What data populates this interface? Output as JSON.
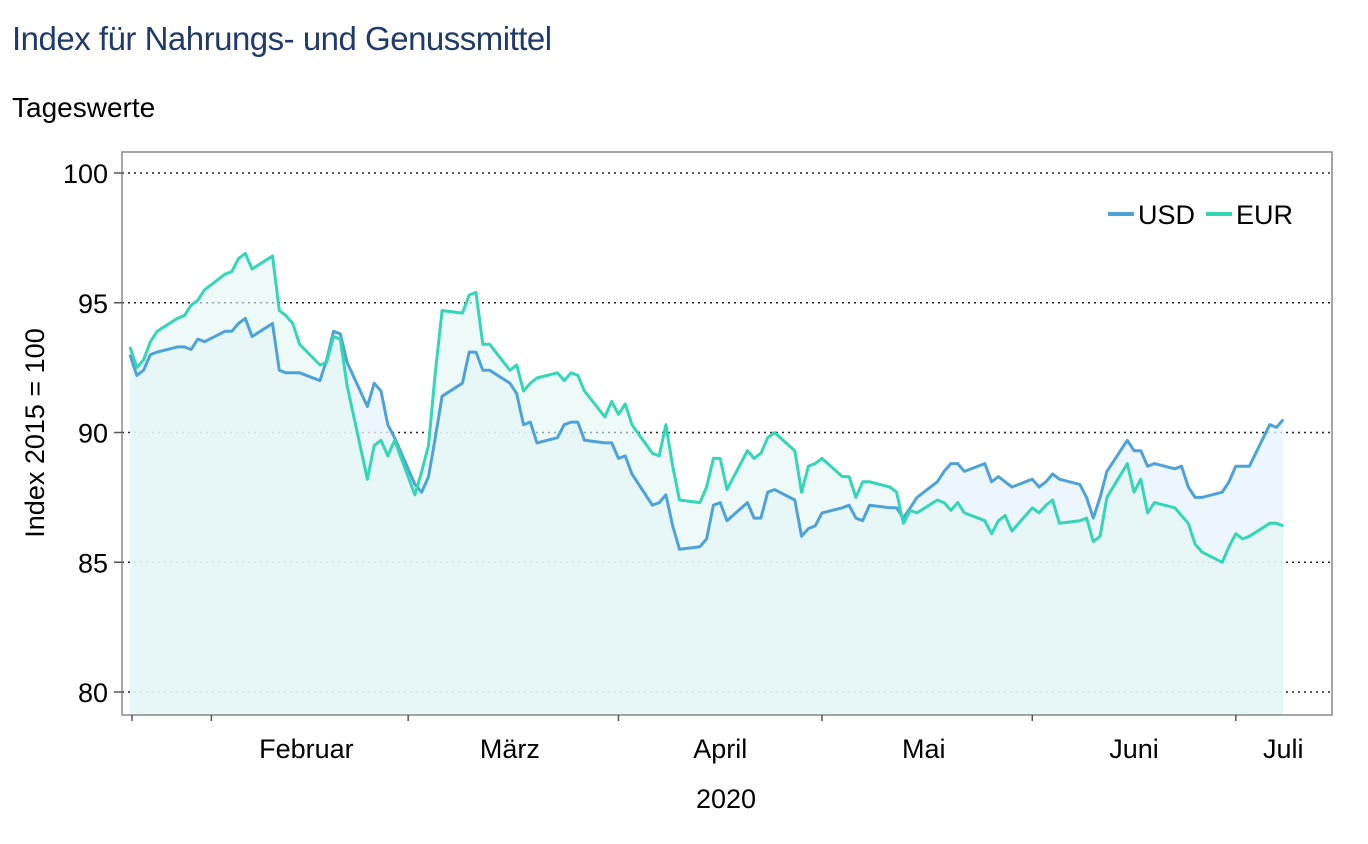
{
  "header": {
    "title": "Index für Nahrungs- und Genussmittel",
    "subtitle": "Tageswerte"
  },
  "chart_data": {
    "type": "area",
    "ylabel": "Index 2015 = 100",
    "xlabel": "2020",
    "ylim": [
      80,
      100
    ],
    "yticks": [
      80,
      85,
      90,
      95,
      100
    ],
    "x_start": "2020-01-20",
    "x_end": "2020-07-14",
    "month_ticks": [
      "2020-02-01",
      "2020-03-01",
      "2020-04-01",
      "2020-05-01",
      "2020-06-01",
      "2020-07-01"
    ],
    "month_labels": [
      {
        "label": "Februar",
        "date": "2020-02-15"
      },
      {
        "label": "März",
        "date": "2020-03-16"
      },
      {
        "label": "April",
        "date": "2020-04-16"
      },
      {
        "label": "Mai",
        "date": "2020-05-16"
      },
      {
        "label": "Juni",
        "date": "2020-06-16"
      },
      {
        "label": "Juli",
        "date": "2020-07-08"
      }
    ],
    "grid": "horizontal-dotted",
    "legend": "top-right",
    "series": [
      {
        "name": "USD",
        "color": "#4da3d9",
        "points": [
          [
            "2020-01-20",
            93.0
          ],
          [
            "2020-01-21",
            92.2
          ],
          [
            "2020-01-22",
            92.4
          ],
          [
            "2020-01-23",
            93.0
          ],
          [
            "2020-01-24",
            93.1
          ],
          [
            "2020-01-27",
            93.3
          ],
          [
            "2020-01-28",
            93.3
          ],
          [
            "2020-01-29",
            93.2
          ],
          [
            "2020-01-30",
            93.6
          ],
          [
            "2020-01-31",
            93.5
          ],
          [
            "2020-02-03",
            93.9
          ],
          [
            "2020-02-04",
            93.9
          ],
          [
            "2020-02-05",
            94.2
          ],
          [
            "2020-02-06",
            94.4
          ],
          [
            "2020-02-07",
            93.7
          ],
          [
            "2020-02-10",
            94.2
          ],
          [
            "2020-02-11",
            92.4
          ],
          [
            "2020-02-12",
            92.3
          ],
          [
            "2020-02-13",
            92.3
          ],
          [
            "2020-02-14",
            92.3
          ],
          [
            "2020-02-17",
            92.0
          ],
          [
            "2020-02-18",
            92.8
          ],
          [
            "2020-02-19",
            93.9
          ],
          [
            "2020-02-20",
            93.8
          ],
          [
            "2020-02-21",
            92.7
          ],
          [
            "2020-02-24",
            91.0
          ],
          [
            "2020-02-25",
            91.9
          ],
          [
            "2020-02-26",
            91.6
          ],
          [
            "2020-02-27",
            90.3
          ],
          [
            "2020-02-28",
            89.8
          ],
          [
            "2020-03-02",
            88.0
          ],
          [
            "2020-03-03",
            87.7
          ],
          [
            "2020-03-04",
            88.3
          ],
          [
            "2020-03-05",
            89.8
          ],
          [
            "2020-03-06",
            91.4
          ],
          [
            "2020-03-09",
            91.9
          ],
          [
            "2020-03-10",
            93.1
          ],
          [
            "2020-03-11",
            93.1
          ],
          [
            "2020-03-12",
            92.4
          ],
          [
            "2020-03-13",
            92.4
          ],
          [
            "2020-03-16",
            91.9
          ],
          [
            "2020-03-17",
            91.5
          ],
          [
            "2020-03-18",
            90.3
          ],
          [
            "2020-03-19",
            90.4
          ],
          [
            "2020-03-20",
            89.6
          ],
          [
            "2020-03-23",
            89.8
          ],
          [
            "2020-03-24",
            90.3
          ],
          [
            "2020-03-25",
            90.4
          ],
          [
            "2020-03-26",
            90.4
          ],
          [
            "2020-03-27",
            89.7
          ],
          [
            "2020-03-30",
            89.6
          ],
          [
            "2020-03-31",
            89.6
          ],
          [
            "2020-04-01",
            89.0
          ],
          [
            "2020-04-02",
            89.1
          ],
          [
            "2020-04-03",
            88.4
          ],
          [
            "2020-04-06",
            87.2
          ],
          [
            "2020-04-07",
            87.3
          ],
          [
            "2020-04-08",
            87.6
          ],
          [
            "2020-04-09",
            86.4
          ],
          [
            "2020-04-10",
            85.5
          ],
          [
            "2020-04-13",
            85.6
          ],
          [
            "2020-04-14",
            85.9
          ],
          [
            "2020-04-15",
            87.2
          ],
          [
            "2020-04-16",
            87.3
          ],
          [
            "2020-04-17",
            86.6
          ],
          [
            "2020-04-20",
            87.3
          ],
          [
            "2020-04-21",
            86.7
          ],
          [
            "2020-04-22",
            86.7
          ],
          [
            "2020-04-23",
            87.7
          ],
          [
            "2020-04-24",
            87.8
          ],
          [
            "2020-04-27",
            87.4
          ],
          [
            "2020-04-28",
            86.0
          ],
          [
            "2020-04-29",
            86.3
          ],
          [
            "2020-04-30",
            86.4
          ],
          [
            "2020-05-01",
            86.9
          ],
          [
            "2020-05-04",
            87.1
          ],
          [
            "2020-05-05",
            87.2
          ],
          [
            "2020-05-06",
            86.7
          ],
          [
            "2020-05-07",
            86.6
          ],
          [
            "2020-05-08",
            87.2
          ],
          [
            "2020-05-11",
            87.1
          ],
          [
            "2020-05-12",
            87.1
          ],
          [
            "2020-05-13",
            86.7
          ],
          [
            "2020-05-14",
            87.1
          ],
          [
            "2020-05-15",
            87.5
          ],
          [
            "2020-05-18",
            88.1
          ],
          [
            "2020-05-19",
            88.5
          ],
          [
            "2020-05-20",
            88.8
          ],
          [
            "2020-05-21",
            88.8
          ],
          [
            "2020-05-22",
            88.5
          ],
          [
            "2020-05-25",
            88.8
          ],
          [
            "2020-05-26",
            88.1
          ],
          [
            "2020-05-27",
            88.3
          ],
          [
            "2020-05-28",
            88.1
          ],
          [
            "2020-05-29",
            87.9
          ],
          [
            "2020-06-01",
            88.2
          ],
          [
            "2020-06-02",
            87.9
          ],
          [
            "2020-06-03",
            88.1
          ],
          [
            "2020-06-04",
            88.4
          ],
          [
            "2020-06-05",
            88.2
          ],
          [
            "2020-06-08",
            88.0
          ],
          [
            "2020-06-09",
            87.5
          ],
          [
            "2020-06-10",
            86.7
          ],
          [
            "2020-06-11",
            87.5
          ],
          [
            "2020-06-12",
            88.5
          ],
          [
            "2020-06-15",
            89.7
          ],
          [
            "2020-06-16",
            89.3
          ],
          [
            "2020-06-17",
            89.3
          ],
          [
            "2020-06-18",
            88.7
          ],
          [
            "2020-06-19",
            88.8
          ],
          [
            "2020-06-22",
            88.6
          ],
          [
            "2020-06-23",
            88.7
          ],
          [
            "2020-06-24",
            87.9
          ],
          [
            "2020-06-25",
            87.5
          ],
          [
            "2020-06-26",
            87.5
          ],
          [
            "2020-06-29",
            87.7
          ],
          [
            "2020-06-30",
            88.1
          ],
          [
            "2020-07-01",
            88.7
          ],
          [
            "2020-07-02",
            88.7
          ],
          [
            "2020-07-03",
            88.7
          ],
          [
            "2020-07-06",
            90.3
          ],
          [
            "2020-07-07",
            90.2
          ],
          [
            "2020-07-08",
            90.5
          ]
        ]
      },
      {
        "name": "EUR",
        "color": "#33d6b5",
        "points": [
          [
            "2020-01-20",
            93.3
          ],
          [
            "2020-01-21",
            92.5
          ],
          [
            "2020-01-22",
            92.8
          ],
          [
            "2020-01-23",
            93.5
          ],
          [
            "2020-01-24",
            93.9
          ],
          [
            "2020-01-27",
            94.4
          ],
          [
            "2020-01-28",
            94.5
          ],
          [
            "2020-01-29",
            94.9
          ],
          [
            "2020-01-30",
            95.1
          ],
          [
            "2020-01-31",
            95.5
          ],
          [
            "2020-02-03",
            96.1
          ],
          [
            "2020-02-04",
            96.2
          ],
          [
            "2020-02-05",
            96.7
          ],
          [
            "2020-02-06",
            96.9
          ],
          [
            "2020-02-07",
            96.3
          ],
          [
            "2020-02-10",
            96.8
          ],
          [
            "2020-02-11",
            94.7
          ],
          [
            "2020-02-12",
            94.5
          ],
          [
            "2020-02-13",
            94.2
          ],
          [
            "2020-02-14",
            93.4
          ],
          [
            "2020-02-17",
            92.6
          ],
          [
            "2020-02-18",
            92.7
          ],
          [
            "2020-02-19",
            93.7
          ],
          [
            "2020-02-20",
            93.6
          ],
          [
            "2020-02-21",
            91.8
          ],
          [
            "2020-02-24",
            88.2
          ],
          [
            "2020-02-25",
            89.5
          ],
          [
            "2020-02-26",
            89.7
          ],
          [
            "2020-02-27",
            89.1
          ],
          [
            "2020-02-28",
            89.7
          ],
          [
            "2020-03-02",
            87.6
          ],
          [
            "2020-03-03",
            88.5
          ],
          [
            "2020-03-04",
            89.5
          ],
          [
            "2020-03-05",
            92.3
          ],
          [
            "2020-03-06",
            94.7
          ],
          [
            "2020-03-09",
            94.6
          ],
          [
            "2020-03-10",
            95.3
          ],
          [
            "2020-03-11",
            95.4
          ],
          [
            "2020-03-12",
            93.4
          ],
          [
            "2020-03-13",
            93.4
          ],
          [
            "2020-03-16",
            92.4
          ],
          [
            "2020-03-17",
            92.6
          ],
          [
            "2020-03-18",
            91.6
          ],
          [
            "2020-03-19",
            91.9
          ],
          [
            "2020-03-20",
            92.1
          ],
          [
            "2020-03-23",
            92.3
          ],
          [
            "2020-03-24",
            92.0
          ],
          [
            "2020-03-25",
            92.3
          ],
          [
            "2020-03-26",
            92.2
          ],
          [
            "2020-03-27",
            91.6
          ],
          [
            "2020-03-30",
            90.6
          ],
          [
            "2020-03-31",
            91.2
          ],
          [
            "2020-04-01",
            90.7
          ],
          [
            "2020-04-02",
            91.1
          ],
          [
            "2020-04-03",
            90.3
          ],
          [
            "2020-04-06",
            89.2
          ],
          [
            "2020-04-07",
            89.1
          ],
          [
            "2020-04-08",
            90.3
          ],
          [
            "2020-04-09",
            88.7
          ],
          [
            "2020-04-10",
            87.4
          ],
          [
            "2020-04-13",
            87.3
          ],
          [
            "2020-04-14",
            87.9
          ],
          [
            "2020-04-15",
            89.0
          ],
          [
            "2020-04-16",
            89.0
          ],
          [
            "2020-04-17",
            87.8
          ],
          [
            "2020-04-20",
            89.3
          ],
          [
            "2020-04-21",
            89.0
          ],
          [
            "2020-04-22",
            89.2
          ],
          [
            "2020-04-23",
            89.8
          ],
          [
            "2020-04-24",
            90.0
          ],
          [
            "2020-04-27",
            89.3
          ],
          [
            "2020-04-28",
            87.7
          ],
          [
            "2020-04-29",
            88.7
          ],
          [
            "2020-04-30",
            88.8
          ],
          [
            "2020-05-01",
            89.0
          ],
          [
            "2020-05-04",
            88.3
          ],
          [
            "2020-05-05",
            88.3
          ],
          [
            "2020-05-06",
            87.5
          ],
          [
            "2020-05-07",
            88.1
          ],
          [
            "2020-05-08",
            88.1
          ],
          [
            "2020-05-11",
            87.9
          ],
          [
            "2020-05-12",
            87.7
          ],
          [
            "2020-05-13",
            86.5
          ],
          [
            "2020-05-14",
            87.0
          ],
          [
            "2020-05-15",
            86.9
          ],
          [
            "2020-05-18",
            87.4
          ],
          [
            "2020-05-19",
            87.3
          ],
          [
            "2020-05-20",
            87.0
          ],
          [
            "2020-05-21",
            87.3
          ],
          [
            "2020-05-22",
            86.9
          ],
          [
            "2020-05-25",
            86.6
          ],
          [
            "2020-05-26",
            86.1
          ],
          [
            "2020-05-27",
            86.6
          ],
          [
            "2020-05-28",
            86.8
          ],
          [
            "2020-05-29",
            86.2
          ],
          [
            "2020-06-01",
            87.1
          ],
          [
            "2020-06-02",
            86.9
          ],
          [
            "2020-06-03",
            87.2
          ],
          [
            "2020-06-04",
            87.4
          ],
          [
            "2020-06-05",
            86.5
          ],
          [
            "2020-06-08",
            86.6
          ],
          [
            "2020-06-09",
            86.7
          ],
          [
            "2020-06-10",
            85.8
          ],
          [
            "2020-06-11",
            86.0
          ],
          [
            "2020-06-12",
            87.5
          ],
          [
            "2020-06-15",
            88.8
          ],
          [
            "2020-06-16",
            87.7
          ],
          [
            "2020-06-17",
            88.2
          ],
          [
            "2020-06-18",
            86.9
          ],
          [
            "2020-06-19",
            87.3
          ],
          [
            "2020-06-22",
            87.1
          ],
          [
            "2020-06-23",
            86.8
          ],
          [
            "2020-06-24",
            86.5
          ],
          [
            "2020-06-25",
            85.7
          ],
          [
            "2020-06-26",
            85.4
          ],
          [
            "2020-06-29",
            85.0
          ],
          [
            "2020-06-30",
            85.6
          ],
          [
            "2020-07-01",
            86.1
          ],
          [
            "2020-07-02",
            85.9
          ],
          [
            "2020-07-03",
            86.0
          ],
          [
            "2020-07-06",
            86.5
          ],
          [
            "2020-07-07",
            86.5
          ],
          [
            "2020-07-08",
            86.4
          ]
        ]
      }
    ]
  }
}
